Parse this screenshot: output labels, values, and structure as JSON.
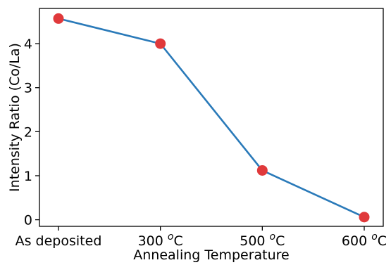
{
  "chart_data": {
    "type": "line",
    "categories": [
      {
        "text": "As deposited",
        "sup": ""
      },
      {
        "text": "300 ",
        "sup": "o",
        "unit": "C"
      },
      {
        "text": "500 ",
        "sup": "o",
        "unit": "C"
      },
      {
        "text": "600 ",
        "sup": "o",
        "unit": "C"
      }
    ],
    "values": [
      4.57,
      4.0,
      1.12,
      0.06
    ],
    "xlabel": "Annealing Temperature",
    "ylabel": "Intensity Ratio (Co/La)",
    "ylim": [
      -0.15,
      4.8
    ],
    "yticks": [
      "0",
      "1",
      "2",
      "3",
      "4"
    ],
    "grid": false,
    "line_color": "#2a7ab9",
    "marker_color": "#e0393b"
  }
}
